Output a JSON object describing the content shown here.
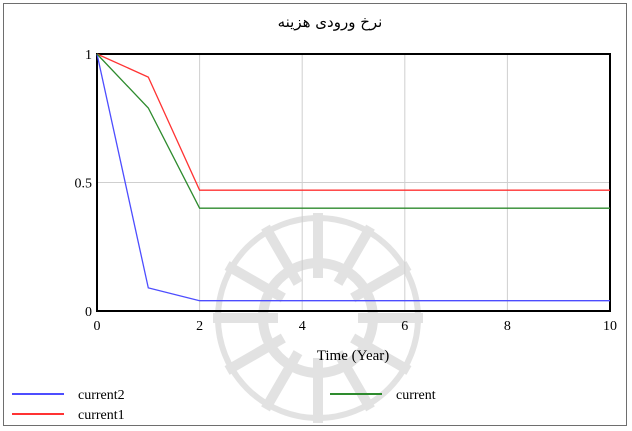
{
  "chart_data": {
    "type": "line",
    "title": "نرخ ورودی هزینه",
    "xlabel": "Time (Year)",
    "ylabel": "",
    "xlim": [
      0,
      10
    ],
    "ylim": [
      0,
      1
    ],
    "x_ticks": [
      "0",
      "2",
      "4",
      "6",
      "8",
      "10"
    ],
    "y_ticks": [
      "0",
      "0.5",
      "1"
    ],
    "grid": true,
    "legend_position": "bottom",
    "series": [
      {
        "name": "current2",
        "color": "#4d4dff",
        "x": [
          0,
          1,
          2,
          10
        ],
        "y": [
          1,
          0.09,
          0.04,
          0.04
        ]
      },
      {
        "name": "current1",
        "color": "#ff3333",
        "x": [
          0,
          1,
          2,
          10
        ],
        "y": [
          1,
          0.91,
          0.47,
          0.47
        ]
      },
      {
        "name": "current",
        "color": "#2e8b2e",
        "x": [
          0,
          1,
          2,
          10
        ],
        "y": [
          1,
          0.79,
          0.4,
          0.4
        ]
      }
    ]
  }
}
